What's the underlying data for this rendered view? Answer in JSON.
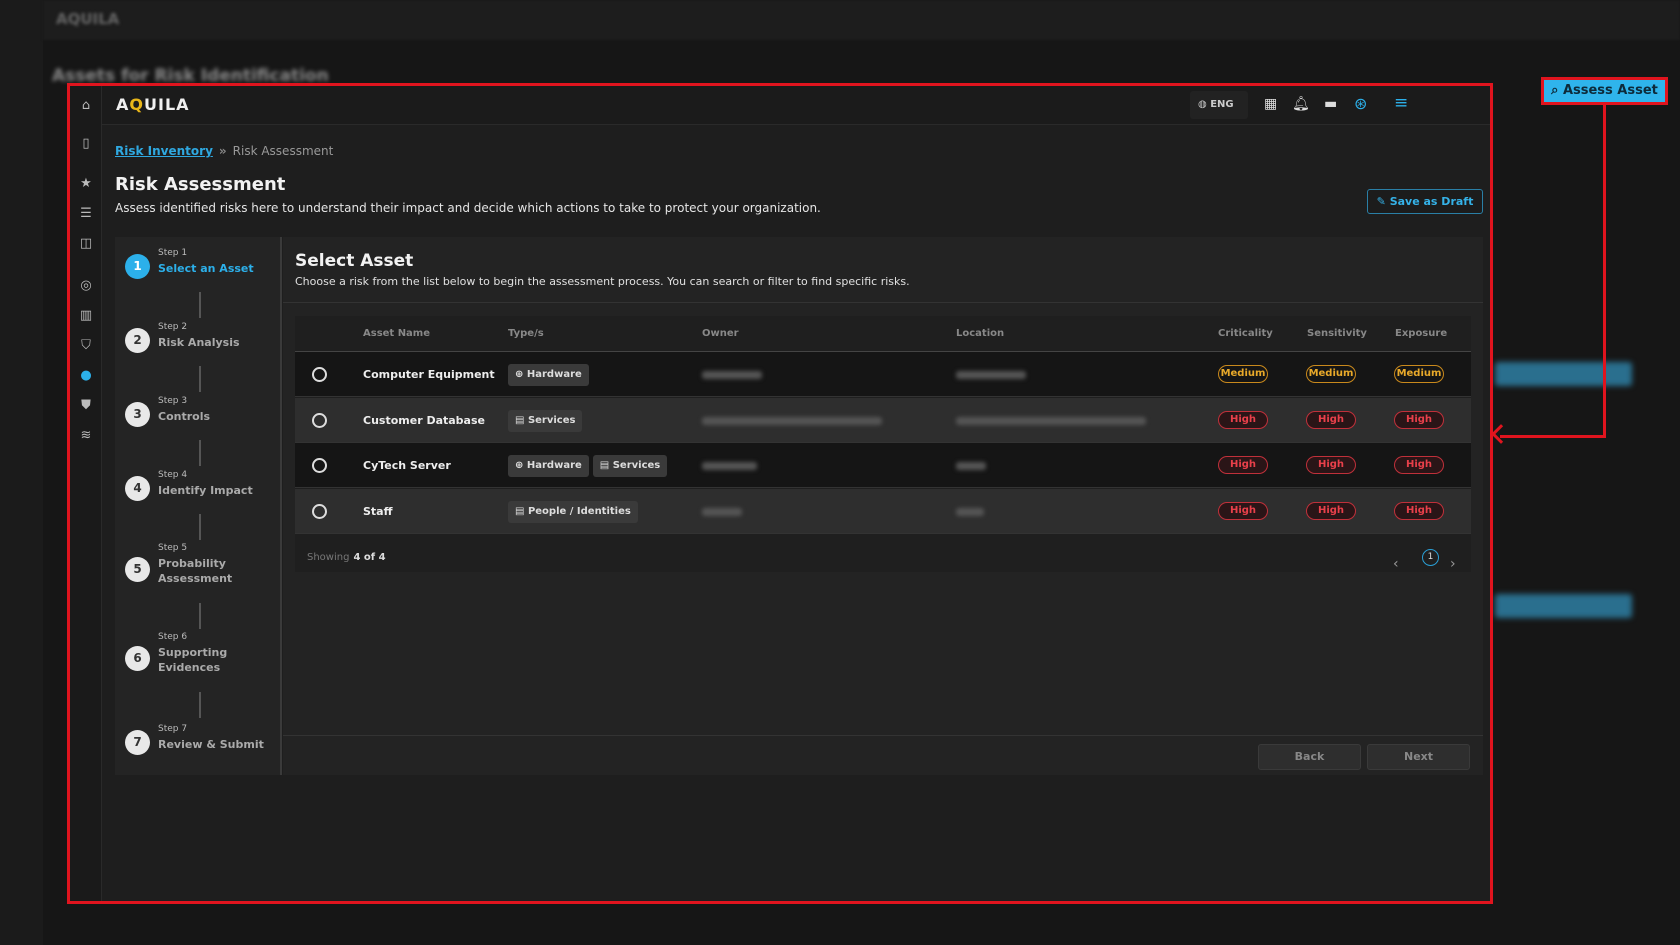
{
  "background": {
    "app_name": "AQUILA",
    "page_title": "Assets for Risk Identification"
  },
  "header": {
    "logo": "AQUILA",
    "language": "ENG",
    "icons": [
      "globe-icon",
      "building-icon",
      "bell-icon",
      "book-icon",
      "lifebuoy-icon",
      "menu-icon"
    ]
  },
  "sidebar": {
    "icons": [
      "home-icon",
      "panel-icon",
      "star-icon",
      "list-icon",
      "layout-icon",
      "radar-icon",
      "bank-icon",
      "shield-icon",
      "compass-icon",
      "shield-lock-icon",
      "database-icon"
    ]
  },
  "breadcrumb": {
    "parent": "Risk Inventory",
    "separator": "»",
    "current": "Risk Assessment"
  },
  "page": {
    "title": "Risk Assessment",
    "description": "Assess identified risks here to understand their impact and decide which actions to take to protect your organization.",
    "save_draft": "Save as Draft"
  },
  "steps": [
    {
      "number": "1",
      "label": "Step 1",
      "title": "Select an Asset",
      "active": true
    },
    {
      "number": "2",
      "label": "Step 2",
      "title": "Risk Analysis"
    },
    {
      "number": "3",
      "label": "Step 3",
      "title": "Controls"
    },
    {
      "number": "4",
      "label": "Step 4",
      "title": "Identify Impact"
    },
    {
      "number": "5",
      "label": "Step 5",
      "title": "Probability Assessment"
    },
    {
      "number": "6",
      "label": "Step 6",
      "title": "Supporting Evidences"
    },
    {
      "number": "7",
      "label": "Step 7",
      "title": "Review & Submit"
    }
  ],
  "main": {
    "title": "Select Asset",
    "description": "Choose a risk from the list below to begin the assessment process. You can search or filter to find specific risks."
  },
  "table": {
    "headers": [
      "Asset Name",
      "Type/s",
      "Owner",
      "Location",
      "Criticality",
      "Sensitivity",
      "Exposure"
    ],
    "rows": [
      {
        "name": "Computer Equipment",
        "types": [
          "Hardware"
        ],
        "criticality": "Medium",
        "sensitivity": "Medium",
        "exposure": "Medium"
      },
      {
        "name": "Customer Database",
        "types": [
          "Services"
        ],
        "criticality": "High",
        "sensitivity": "High",
        "exposure": "High"
      },
      {
        "name": "CyTech Server",
        "types": [
          "Hardware",
          "Services"
        ],
        "criticality": "High",
        "sensitivity": "High",
        "exposure": "High"
      },
      {
        "name": "Staff",
        "types": [
          "People / Identities"
        ],
        "criticality": "High",
        "sensitivity": "High",
        "exposure": "High"
      }
    ],
    "showing_label": "Showing",
    "showing_value": "4 of 4",
    "page": "1"
  },
  "buttons": {
    "back": "Back",
    "next": "Next"
  },
  "callout": {
    "label": "Assess Asset"
  },
  "colors": {
    "accent": "#2fb4ec",
    "medium": "#e8a92a",
    "high": "#e8404a",
    "highlight": "#e0141e"
  }
}
